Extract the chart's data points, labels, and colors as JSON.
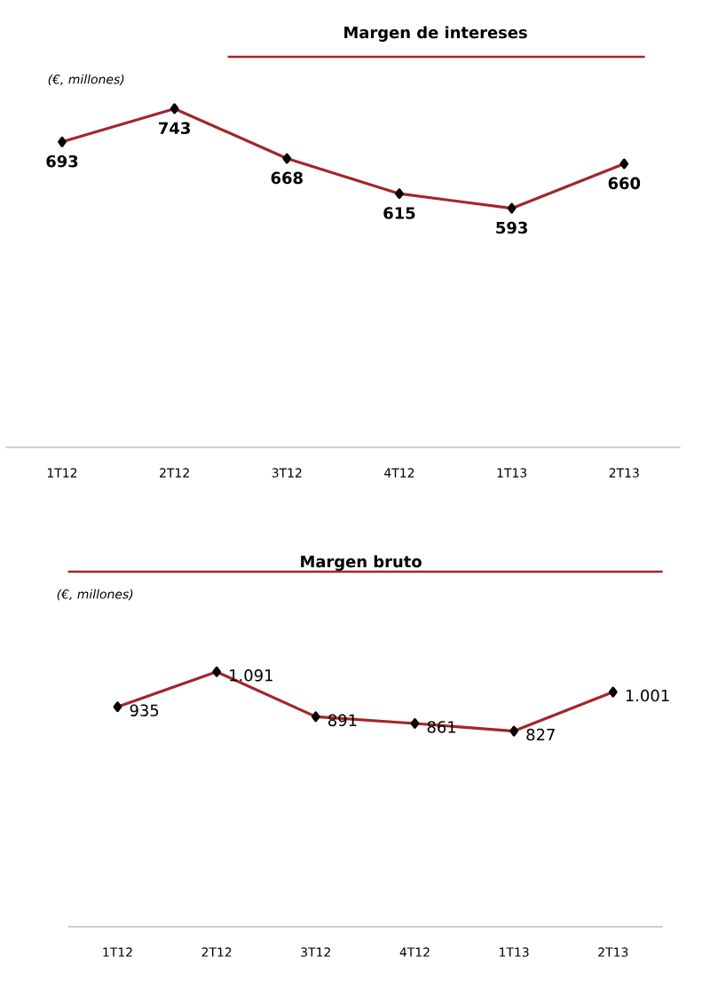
{
  "chart_data": [
    {
      "type": "line",
      "title": "Margen de intereses",
      "subtitle": "(€, millones)",
      "categories": [
        "1T12",
        "2T12",
        "3T12",
        "4T12",
        "1T13",
        "2T13"
      ],
      "values": [
        693,
        743,
        668,
        615,
        593,
        660
      ],
      "value_labels": [
        "693",
        "743",
        "668",
        "615",
        "593",
        "660"
      ],
      "color": "#a3262b",
      "marker": "diamond",
      "line_style": "solid"
    },
    {
      "type": "line",
      "title": "Margen bruto",
      "subtitle": "(€, millones)",
      "categories": [
        "1T12",
        "2T12",
        "3T12",
        "4T12",
        "1T13",
        "2T13"
      ],
      "values": [
        935,
        1091,
        891,
        861,
        827,
        1001
      ],
      "value_labels": [
        "935",
        "1.091",
        "891",
        "861",
        "827",
        "1.001"
      ],
      "color": "#a3262b",
      "marker": "diamond",
      "line_style": "solid"
    }
  ]
}
